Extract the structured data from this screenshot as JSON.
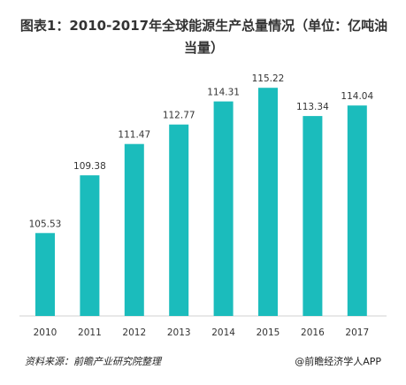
{
  "title": "图表1：2010-2017年全球能源生产总量情况（单位：亿吨油当量）",
  "source": "资料来源：前瞻产业研究院整理",
  "credit": "@前瞻经济学人APP",
  "colors": {
    "bar": "#1bbcbc",
    "axis": "#d0d0d0"
  },
  "chart_data": {
    "type": "bar",
    "title": "图表1：2010-2017年全球能源生产总量情况（单位：亿吨油当量）",
    "categories": [
      "2010",
      "2011",
      "2012",
      "2013",
      "2014",
      "2015",
      "2016",
      "2017"
    ],
    "values": [
      105.53,
      109.38,
      111.47,
      112.77,
      114.31,
      115.22,
      113.34,
      114.04
    ],
    "value_labels": [
      "105.53",
      "109.38",
      "111.47",
      "112.77",
      "114.31",
      "115.22",
      "113.34",
      "114.04"
    ],
    "xlabel": "",
    "ylabel": "",
    "ylim": [
      100,
      116
    ],
    "grid": false,
    "legend": "none"
  }
}
